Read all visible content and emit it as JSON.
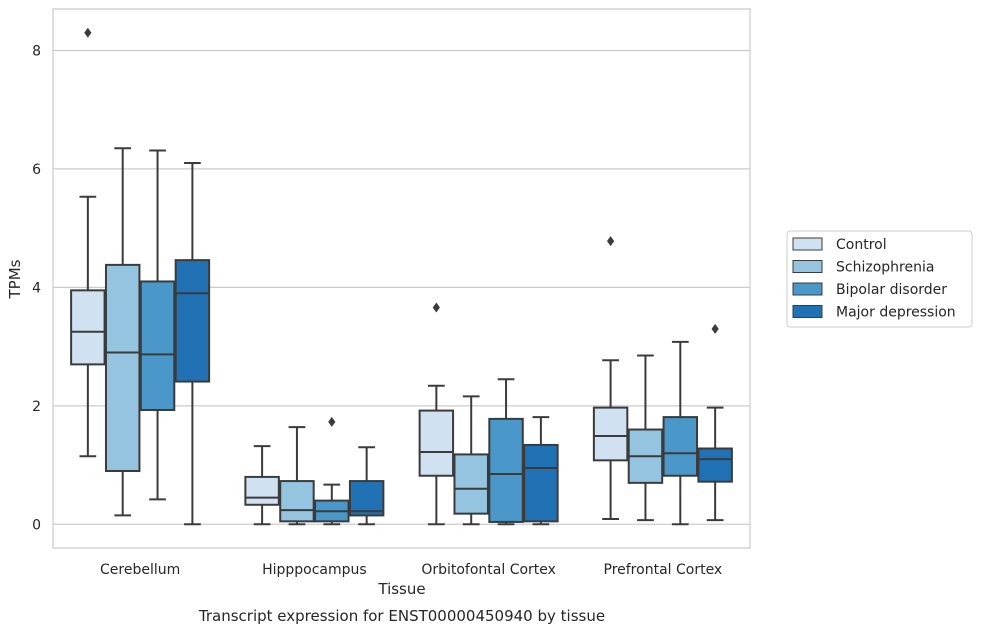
{
  "chart_data": {
    "type": "box",
    "title": "",
    "caption": "Transcript expression for ENST00000450940 by tissue",
    "xlabel": "Tissue",
    "ylabel": "TPMs",
    "ylim": [
      -0.4,
      8.7
    ],
    "yticks": [
      "0",
      "2",
      "4",
      "6",
      "8"
    ],
    "grid": "horizontal",
    "legend_position": "right",
    "categories": [
      "Cerebellum",
      "Hipppocampus",
      "Orbitofontal Cortex",
      "Prefrontal Cortex"
    ],
    "series": [
      {
        "name": "Control",
        "color": "#d0e1f2",
        "boxes": [
          {
            "whislo": 1.15,
            "q1": 2.7,
            "med": 3.25,
            "q3": 3.95,
            "whishi": 5.53,
            "fliers": [
              8.3
            ]
          },
          {
            "whislo": 0.0,
            "q1": 0.33,
            "med": 0.45,
            "q3": 0.8,
            "whishi": 1.32,
            "fliers": []
          },
          {
            "whislo": 0.0,
            "q1": 0.82,
            "med": 1.22,
            "q3": 1.92,
            "whishi": 2.34,
            "fliers": [
              3.66
            ]
          },
          {
            "whislo": 0.09,
            "q1": 1.08,
            "med": 1.49,
            "q3": 1.97,
            "whishi": 2.77,
            "fliers": [
              4.78
            ]
          }
        ]
      },
      {
        "name": "Schizophrenia",
        "color": "#94c4df",
        "boxes": [
          {
            "whislo": 0.15,
            "q1": 0.9,
            "med": 2.9,
            "q3": 4.38,
            "whishi": 6.35,
            "fliers": []
          },
          {
            "whislo": 0.0,
            "q1": 0.05,
            "med": 0.24,
            "q3": 0.73,
            "whishi": 1.64,
            "fliers": []
          },
          {
            "whislo": 0.0,
            "q1": 0.18,
            "med": 0.6,
            "q3": 1.18,
            "whishi": 2.16,
            "fliers": []
          },
          {
            "whislo": 0.07,
            "q1": 0.7,
            "med": 1.15,
            "q3": 1.6,
            "whishi": 2.85,
            "fliers": []
          }
        ]
      },
      {
        "name": "Bipolar disorder",
        "color": "#4a98c9",
        "boxes": [
          {
            "whislo": 0.42,
            "q1": 1.93,
            "med": 2.87,
            "q3": 4.1,
            "whishi": 6.31,
            "fliers": []
          },
          {
            "whislo": 0.0,
            "q1": 0.05,
            "med": 0.22,
            "q3": 0.4,
            "whishi": 0.67,
            "fliers": [
              1.73
            ]
          },
          {
            "whislo": 0.0,
            "q1": 0.04,
            "med": 0.85,
            "q3": 1.78,
            "whishi": 2.45,
            "fliers": []
          },
          {
            "whislo": 0.0,
            "q1": 0.82,
            "med": 1.2,
            "q3": 1.81,
            "whishi": 3.08,
            "fliers": []
          }
        ]
      },
      {
        "name": "Major depression",
        "color": "#2171b5",
        "boxes": [
          {
            "whislo": 0.0,
            "q1": 2.41,
            "med": 3.9,
            "q3": 4.46,
            "whishi": 6.1,
            "fliers": []
          },
          {
            "whislo": 0.0,
            "q1": 0.15,
            "med": 0.22,
            "q3": 0.73,
            "whishi": 1.3,
            "fliers": []
          },
          {
            "whislo": 0.0,
            "q1": 0.05,
            "med": 0.95,
            "q3": 1.34,
            "whishi": 1.81,
            "fliers": []
          },
          {
            "whislo": 0.07,
            "q1": 0.72,
            "med": 1.1,
            "q3": 1.28,
            "whishi": 1.97,
            "fliers": [
              3.3
            ]
          }
        ]
      }
    ]
  }
}
